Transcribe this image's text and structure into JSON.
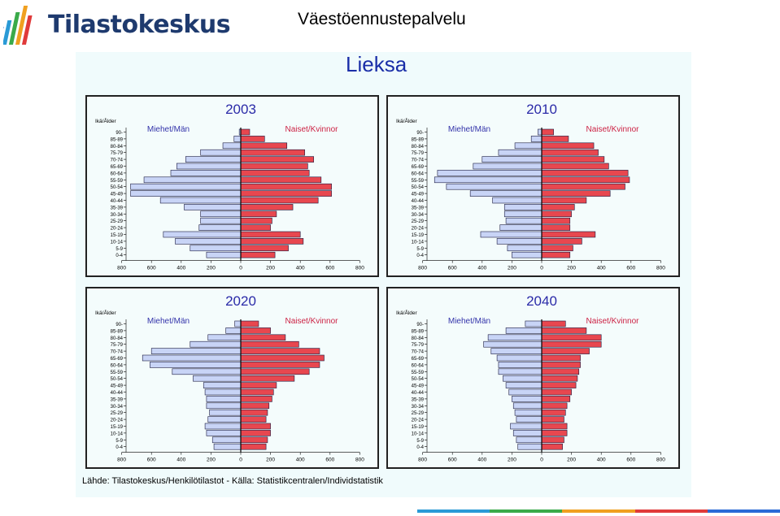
{
  "header": {
    "brand_name": "Tilastokeskus",
    "page_title": "Väestöennustepalvelu"
  },
  "main": {
    "title": "Lieksa",
    "source": "Lähde: Tilastokeskus/Henkilötilastot  -  Källa: Statistikcentralen/Individstatistik"
  },
  "colors": {
    "men_bar": "#c8d4f6",
    "women_bar": "#e8474f",
    "men_label": "#3333aa",
    "women_label": "#cc2244",
    "year_title": "#2a2aa8",
    "bottom_bar": [
      "#2a9ad6",
      "#3aaa4a",
      "#f0a020",
      "#e03a3a",
      "#2a6ad6"
    ]
  },
  "chart_data": [
    {
      "type": "bar",
      "title": "2003",
      "age_axis_label": "Ikä/Ålder",
      "left_label": "Miehet/Män",
      "right_label": "Naiset/Kvinnor",
      "categories": [
        "90-",
        "85-89",
        "80-84",
        "75-79",
        "70-74",
        "65-69",
        "60-64",
        "55-59",
        "50-54",
        "45-49",
        "40-44",
        "35-39",
        "30-34",
        "25-29",
        "20-24",
        "15-19",
        "10-14",
        "5-9",
        "0-4"
      ],
      "x_ticks": [
        "800",
        "600",
        "400",
        "200",
        "0",
        "200",
        "400",
        "600",
        "800"
      ],
      "xlim": [
        -800,
        800
      ],
      "series": [
        {
          "name": "Miehet/Män",
          "values": [
            10,
            45,
            120,
            270,
            370,
            430,
            470,
            650,
            740,
            740,
            540,
            380,
            270,
            270,
            280,
            520,
            440,
            340,
            230
          ]
        },
        {
          "name": "Naiset/Kvinnor",
          "values": [
            60,
            160,
            310,
            430,
            490,
            450,
            460,
            540,
            610,
            610,
            520,
            350,
            240,
            210,
            200,
            400,
            420,
            320,
            230
          ]
        }
      ]
    },
    {
      "type": "bar",
      "title": "2010",
      "age_axis_label": "Ikä/Ålder",
      "left_label": "Miehet/Män",
      "right_label": "Naiset/Kvinnor",
      "categories": [
        "90-",
        "85-89",
        "80-84",
        "75-79",
        "70-74",
        "65-69",
        "60-64",
        "55-59",
        "50-54",
        "45-49",
        "40-44",
        "35-39",
        "30-34",
        "25-29",
        "20-24",
        "15-19",
        "10-14",
        "5-9",
        "0-4"
      ],
      "x_ticks": [
        "800",
        "600",
        "400",
        "200",
        "0",
        "200",
        "400",
        "600",
        "800"
      ],
      "xlim": [
        -800,
        800
      ],
      "series": [
        {
          "name": "Miehet/Män",
          "values": [
            25,
            70,
            180,
            290,
            400,
            460,
            700,
            720,
            640,
            480,
            330,
            250,
            250,
            240,
            280,
            410,
            300,
            230,
            200
          ]
        },
        {
          "name": "Naiset/Kvinnor",
          "values": [
            80,
            180,
            350,
            380,
            420,
            450,
            580,
            590,
            560,
            460,
            300,
            220,
            200,
            190,
            190,
            360,
            270,
            210,
            190
          ]
        }
      ]
    },
    {
      "type": "bar",
      "title": "2020",
      "age_axis_label": "Ikä/Ålder",
      "left_label": "Miehet/Män",
      "right_label": "Naiset/Kvinnor",
      "categories": [
        "90-",
        "85-89",
        "80-84",
        "75-79",
        "70-74",
        "65-69",
        "60-64",
        "55-59",
        "50-54",
        "45-49",
        "40-44",
        "35-39",
        "30-34",
        "25-29",
        "20-24",
        "15-19",
        "10-14",
        "5-9",
        "0-4"
      ],
      "x_ticks": [
        "800",
        "600",
        "400",
        "200",
        "0",
        "200",
        "400",
        "600",
        "800"
      ],
      "xlim": [
        -800,
        800
      ],
      "series": [
        {
          "name": "Miehet/Män",
          "values": [
            40,
            100,
            220,
            340,
            600,
            660,
            610,
            460,
            320,
            250,
            240,
            230,
            230,
            210,
            220,
            240,
            230,
            190,
            180
          ]
        },
        {
          "name": "Naiset/Kvinnor",
          "values": [
            120,
            200,
            300,
            390,
            530,
            560,
            530,
            460,
            360,
            240,
            220,
            210,
            190,
            180,
            170,
            200,
            200,
            180,
            170
          ]
        }
      ]
    },
    {
      "type": "bar",
      "title": "2040",
      "age_axis_label": "Ikä/Ålder",
      "left_label": "Miehet/Män",
      "right_label": "Naiset/Kvinnor",
      "categories": [
        "90-",
        "85-89",
        "80-84",
        "75-79",
        "70-74",
        "65-69",
        "60-64",
        "55-59",
        "50-54",
        "45-49",
        "40-44",
        "35-39",
        "30-34",
        "25-29",
        "20-24",
        "15-19",
        "10-14",
        "5-9",
        "0-4"
      ],
      "x_ticks": [
        "800",
        "600",
        "400",
        "200",
        "0",
        "200",
        "400",
        "600",
        "800"
      ],
      "xlim": [
        -800,
        800
      ],
      "series": [
        {
          "name": "Miehet/Män",
          "values": [
            110,
            240,
            360,
            390,
            340,
            300,
            290,
            290,
            260,
            240,
            220,
            200,
            190,
            180,
            170,
            210,
            190,
            170,
            160
          ]
        },
        {
          "name": "Naiset/Kvinnor",
          "values": [
            160,
            300,
            400,
            400,
            320,
            260,
            260,
            250,
            240,
            230,
            200,
            190,
            170,
            160,
            150,
            170,
            170,
            150,
            140
          ]
        }
      ]
    }
  ]
}
